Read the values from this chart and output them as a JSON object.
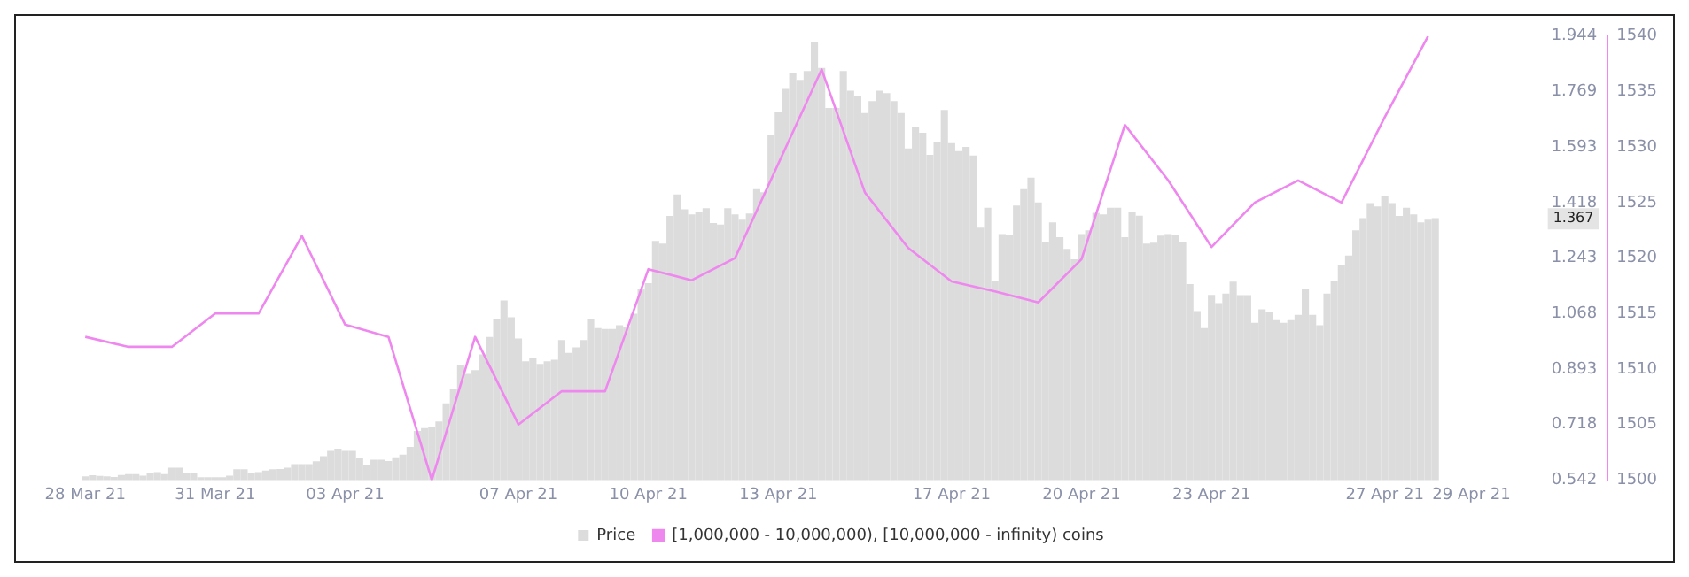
{
  "chart_data": {
    "type": "bar",
    "legend": "bottom",
    "annotations": [
      "1.367"
    ],
    "x": [
      "--03-28T00:00",
      "--03-28T04:00",
      "--03-28T08:00",
      "--03-28T12:00",
      "--03-28T16:00",
      "--03-28T20:00",
      "--03-29T00:00",
      "--03-29T04:00",
      "--03-29T08:00",
      "--03-29T12:00",
      "--03-29T16:00",
      "--03-29T20:00",
      "--03-30T00:00",
      "--03-30T04:00",
      "--03-30T08:00",
      "--03-30T12:00",
      "--03-30T16:00",
      "--03-30T20:00",
      "--03-31T00:00",
      "--03-31T04:00",
      "--03-31T08:00",
      "--03-31T12:00",
      "--03-31T16:00",
      "--03-31T20:00",
      "--04-01T00:00",
      "--04-01T04:00",
      "--04-01T08:00",
      "--04-01T12:00",
      "--04-01T16:00",
      "--04-01T20:00",
      "--04-02T00:00",
      "--04-02T04:00",
      "--04-02T08:00",
      "--04-02T12:00",
      "--04-02T16:00",
      "--04-02T20:00",
      "--04-03T00:00",
      "--04-03T04:00",
      "--04-03T08:00",
      "--04-03T12:00",
      "--04-03T16:00",
      "--04-03T20:00",
      "--04-04T00:00",
      "--04-04T04:00",
      "--04-04T08:00",
      "--04-04T12:00",
      "--04-04T16:00",
      "--04-04T20:00",
      "--04-05T00:00",
      "--04-05T04:00",
      "--04-05T08:00",
      "--04-05T12:00",
      "--04-05T16:00",
      "--04-05T20:00",
      "--04-06T00:00",
      "--04-06T04:00",
      "--04-06T08:00",
      "--04-06T12:00",
      "--04-06T16:00",
      "--04-06T20:00",
      "--04-07T00:00",
      "--04-07T04:00",
      "--04-07T08:00",
      "--04-07T12:00",
      "--04-07T16:00",
      "--04-07T20:00",
      "--04-08T00:00",
      "--04-08T04:00",
      "--04-08T08:00",
      "--04-08T12:00",
      "--04-08T16:00",
      "--04-08T20:00",
      "--04-09T00:00",
      "--04-09T04:00",
      "--04-09T08:00",
      "--04-09T12:00",
      "--04-09T16:00",
      "--04-09T20:00",
      "--04-10T00:00",
      "--04-10T04:00",
      "--04-10T08:00",
      "--04-10T12:00",
      "--04-10T16:00",
      "--04-10T20:00",
      "--04-11T00:00",
      "--04-11T04:00",
      "--04-11T08:00",
      "--04-11T12:00",
      "--04-11T16:00",
      "--04-11T20:00",
      "--04-12T00:00",
      "--04-12T04:00",
      "--04-12T08:00",
      "--04-12T12:00",
      "--04-12T16:00",
      "--04-12T20:00",
      "--04-13T00:00",
      "--04-13T04:00",
      "--04-13T08:00",
      "--04-13T12:00",
      "--04-13T16:00",
      "--04-13T20:00",
      "--04-14T00:00",
      "--04-14T04:00",
      "--04-14T08:00",
      "--04-14T12:00",
      "--04-14T16:00",
      "--04-14T20:00",
      "--04-15T00:00",
      "--04-15T04:00",
      "--04-15T08:00",
      "--04-15T12:00",
      "--04-15T16:00",
      "--04-15T20:00",
      "--04-16T00:00",
      "--04-16T04:00",
      "--04-16T08:00",
      "--04-16T12:00",
      "--04-16T16:00",
      "--04-16T20:00",
      "--04-17T00:00",
      "--04-17T04:00",
      "--04-17T08:00",
      "--04-17T12:00",
      "--04-17T16:00",
      "--04-17T20:00",
      "--04-18T00:00",
      "--04-18T04:00",
      "--04-18T08:00",
      "--04-18T12:00",
      "--04-18T16:00",
      "--04-18T20:00",
      "--04-19T00:00",
      "--04-19T04:00",
      "--04-19T08:00",
      "--04-19T12:00",
      "--04-19T16:00",
      "--04-19T20:00",
      "--04-20T00:00",
      "--04-20T04:00",
      "--04-20T08:00",
      "--04-20T12:00",
      "--04-20T16:00",
      "--04-20T20:00",
      "--04-21T00:00",
      "--04-21T04:00",
      "--04-21T08:00",
      "--04-21T12:00",
      "--04-21T16:00",
      "--04-21T20:00",
      "--04-22T00:00",
      "--04-22T04:00",
      "--04-22T08:00",
      "--04-22T12:00",
      "--04-22T16:00",
      "--04-22T20:00",
      "--04-23T00:00",
      "--04-23T04:00",
      "--04-23T08:00",
      "--04-23T12:00",
      "--04-23T16:00",
      "--04-23T20:00",
      "--04-24T00:00",
      "--04-24T04:00",
      "--04-24T08:00",
      "--04-24T12:00",
      "--04-24T16:00",
      "--04-24T20:00",
      "--04-25T00:00",
      "--04-25T04:00",
      "--04-25T08:00",
      "--04-25T12:00",
      "--04-25T16:00",
      "--04-25T20:00",
      "--04-26T00:00",
      "--04-26T04:00",
      "--04-26T08:00",
      "--04-26T12:00",
      "--04-26T16:00",
      "--04-26T20:00",
      "--04-27T00:00",
      "--04-27T04:00",
      "--04-27T08:00",
      "--04-27T12:00",
      "--04-27T16:00",
      "--04-27T20:00",
      "--04-28T00:00",
      "--04-28T04:00"
    ],
    "xlim": [
      "--03-28",
      "--04-29"
    ],
    "xticks": [
      {
        "value": "--03-28",
        "label": "28 Mar 21"
      },
      {
        "value": "--03-31",
        "label": "31 Mar 21"
      },
      {
        "value": "--04-03",
        "label": "03 Apr 21"
      },
      {
        "value": "--04-07",
        "label": "07 Apr 21"
      },
      {
        "value": "--04-10",
        "label": "10 Apr 21"
      },
      {
        "value": "--04-13",
        "label": "13 Apr 21"
      },
      {
        "value": "--04-17",
        "label": "17 Apr 21"
      },
      {
        "value": "--04-20",
        "label": "20 Apr 21"
      },
      {
        "value": "--04-23",
        "label": "23 Apr 21"
      },
      {
        "value": "--04-27",
        "label": "27 Apr 21"
      },
      {
        "value": "--04-29",
        "label": "29 Apr 21"
      }
    ],
    "ylim": [
      0.542,
      1.944
    ],
    "yticks": [
      0.542,
      0.718,
      0.893,
      1.068,
      1.243,
      1.418,
      1.593,
      1.769,
      1.944
    ],
    "y2lim": [
      1500,
      1540
    ],
    "y2ticks": [
      1500,
      1505,
      1510,
      1515,
      1520,
      1525,
      1530,
      1535,
      1540
    ],
    "series": [
      {
        "name": "Price",
        "color": "#dcdcdc",
        "values": [
          0.552,
          0.555,
          0.553,
          0.552,
          0.55,
          0.556,
          0.559,
          0.559,
          0.554,
          0.562,
          0.565,
          0.559,
          0.579,
          0.579,
          0.562,
          0.562,
          0.549,
          0.549,
          0.549,
          0.549,
          0.554,
          0.574,
          0.574,
          0.562,
          0.565,
          0.57,
          0.574,
          0.575,
          0.579,
          0.59,
          0.59,
          0.59,
          0.599,
          0.615,
          0.632,
          0.639,
          0.632,
          0.632,
          0.609,
          0.587,
          0.604,
          0.604,
          0.6,
          0.612,
          0.62,
          0.645,
          0.695,
          0.704,
          0.709,
          0.725,
          0.782,
          0.829,
          0.904,
          0.875,
          0.887,
          0.937,
          0.992,
          1.049,
          1.107,
          1.054,
          0.987,
          0.915,
          0.924,
          0.907,
          0.915,
          0.92,
          0.982,
          0.942,
          0.959,
          0.982,
          1.05,
          1.02,
          1.017,
          1.017,
          1.029,
          1.025,
          1.065,
          1.145,
          1.162,
          1.295,
          1.287,
          1.374,
          1.442,
          1.395,
          1.379,
          1.387,
          1.399,
          1.352,
          1.347,
          1.399,
          1.379,
          1.362,
          1.382,
          1.459,
          1.449,
          1.629,
          1.704,
          1.775,
          1.825,
          1.804,
          1.832,
          1.924,
          1.842,
          1.715,
          1.715,
          1.832,
          1.77,
          1.754,
          1.699,
          1.737,
          1.77,
          1.762,
          1.737,
          1.699,
          1.587,
          1.654,
          1.637,
          1.567,
          1.609,
          1.709,
          1.604,
          1.579,
          1.592,
          1.565,
          1.337,
          1.4,
          1.17,
          1.317,
          1.315,
          1.407,
          1.459,
          1.495,
          1.417,
          1.292,
          1.354,
          1.307,
          1.27,
          1.237,
          1.317,
          1.329,
          1.384,
          1.379,
          1.4,
          1.4,
          1.307,
          1.387,
          1.375,
          1.287,
          1.29,
          1.312,
          1.317,
          1.315,
          1.292,
          1.159,
          1.074,
          1.02,
          1.125,
          1.099,
          1.129,
          1.167,
          1.124,
          1.124,
          1.037,
          1.079,
          1.07,
          1.045,
          1.037,
          1.045,
          1.062,
          1.145,
          1.062,
          1.029,
          1.129,
          1.17,
          1.22,
          1.249,
          1.329,
          1.367,
          1.415,
          1.404,
          1.437,
          1.415,
          1.374,
          1.4,
          1.379,
          1.354,
          1.362,
          1.367
        ]
      },
      {
        "name": "[1,000,000 - 10,000,000), [10,000,000 - infinity) coins",
        "type": "line",
        "axis": "y2",
        "color": "#ee88ee",
        "x": [
          "--03-28",
          "--03-29",
          "--03-30",
          "--03-31",
          "--04-01",
          "--04-02",
          "--04-03",
          "--04-04",
          "--04-05",
          "--04-06",
          "--04-07",
          "--04-08",
          "--04-09",
          "--04-10",
          "--04-11",
          "--04-12",
          "--04-13",
          "--04-14",
          "--04-15",
          "--04-16",
          "--04-17",
          "--04-18",
          "--04-19",
          "--04-20",
          "--04-21",
          "--04-22",
          "--04-23",
          "--04-24",
          "--04-25",
          "--04-26",
          "--04-27",
          "--04-28"
        ],
        "values": [
          1512.9,
          1512,
          1512,
          1515,
          1515,
          1522,
          1514,
          1512.9,
          1500,
          1512.9,
          1505,
          1508,
          1508,
          1519,
          1518,
          1520,
          1528.5,
          1537,
          1525.9,
          1520.9,
          1517.9,
          1517,
          1516,
          1519.9,
          1532,
          1527,
          1521,
          1525,
          1527,
          1525,
          1532.7,
          1540
        ]
      }
    ]
  }
}
